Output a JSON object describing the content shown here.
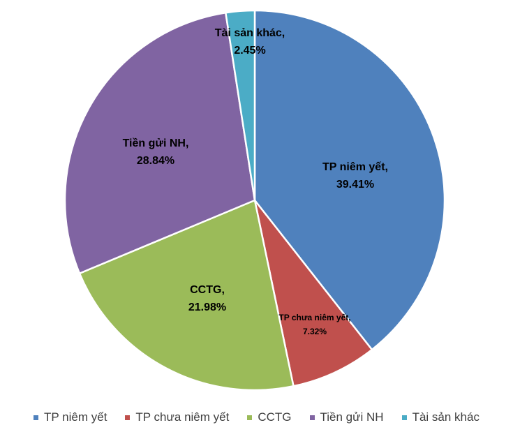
{
  "chart_data": {
    "type": "pie",
    "title": "",
    "legend_position": "bottom",
    "slices": [
      {
        "name": "TP niêm yết",
        "value": 39.41,
        "label_line1": "TP niêm yết,",
        "label_line2": "39.41%",
        "color": "#4F81BD"
      },
      {
        "name": "TP chưa niêm yết",
        "value": 7.32,
        "label_line1": "TP chưa niêm yết,",
        "label_line2": "7.32%",
        "color": "#C0504D"
      },
      {
        "name": "CCTG",
        "value": 21.98,
        "label_line1": "CCTG,",
        "label_line2": "21.98%",
        "color": "#9BBB59"
      },
      {
        "name": "Tiền gửi NH",
        "value": 28.84,
        "label_line1": "Tiền gửi NH,",
        "label_line2": "28.84%",
        "color": "#8064A2"
      },
      {
        "name": "Tài sản khác",
        "value": 2.45,
        "label_line1": "Tài sản khác,",
        "label_line2": "2.45%",
        "color": "#4BACC6"
      }
    ]
  }
}
